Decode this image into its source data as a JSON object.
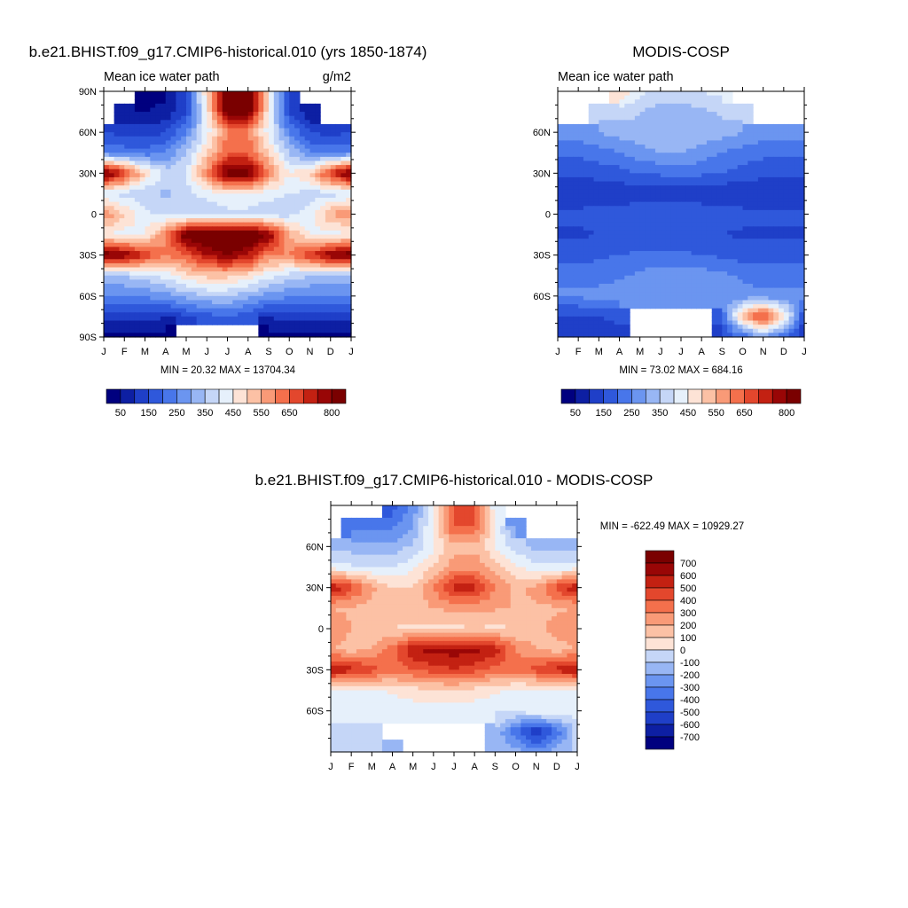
{
  "palette": [
    "#00007f",
    "#0d1fa3",
    "#1f3fc8",
    "#2f58db",
    "#4876ea",
    "#6b95f0",
    "#98b6f4",
    "#c5d6f7",
    "#e6f0fb",
    "#fde3d6",
    "#fcc1a5",
    "#f99a77",
    "#f4704c",
    "#e3472d",
    "#c32112",
    "#990606",
    "#7a0000"
  ],
  "missing_color": "#ffffff",
  "panels": [
    {
      "id": "model",
      "title": "b.e21.BHIST.f09_g17.CMIP6-historical.010 (yrs 1850-1874)",
      "subtitle_left": "Mean ice water path",
      "subtitle_right": "g/m2",
      "stats": "MIN =  20.32 MAX = 13704.34",
      "x_ticks": [
        "J",
        "F",
        "M",
        "A",
        "M",
        "J",
        "J",
        "A",
        "S",
        "O",
        "N",
        "D",
        "J"
      ],
      "y_ticks": [
        "90N",
        "60N",
        "30N",
        "0",
        "30S",
        "60S",
        "90S"
      ]
    },
    {
      "id": "obs",
      "title": "MODIS-COSP",
      "subtitle_left": "Mean ice water path",
      "subtitle_right": "",
      "stats": "MIN =  73.02 MAX = 684.16",
      "x_ticks": [
        "J",
        "F",
        "M",
        "A",
        "M",
        "J",
        "J",
        "A",
        "S",
        "O",
        "N",
        "D",
        "J"
      ],
      "y_ticks": [
        "60N",
        "30N",
        "0",
        "30S",
        "60S"
      ]
    },
    {
      "id": "diff",
      "title": "b.e21.BHIST.f09_g17.CMIP6-historical.010 - MODIS-COSP",
      "subtitle_left": "",
      "subtitle_right": "",
      "stats": "MIN = -622.49 MAX = 10929.27",
      "x_ticks": [
        "J",
        "F",
        "M",
        "A",
        "M",
        "J",
        "J",
        "A",
        "S",
        "O",
        "N",
        "D",
        "J"
      ],
      "y_ticks": [
        "60N",
        "30N",
        "0",
        "30S",
        "60S"
      ]
    }
  ],
  "colorbar_abs": {
    "labels": [
      "50",
      "150",
      "250",
      "350",
      "450",
      "550",
      "650",
      "800"
    ]
  },
  "colorbar_diff": {
    "labels": [
      "700",
      "600",
      "500",
      "400",
      "300",
      "200",
      "100",
      "0",
      "-100",
      "-200",
      "-300",
      "-400",
      "-500",
      "-600",
      "-700"
    ]
  },
  "chart_data": [
    {
      "type": "heatmap",
      "title": "b.e21.BHIST.f09_g17.CMIP6-historical.010 (yrs 1850-1874)",
      "subtitle": "Mean ice water path",
      "units": "g/m2",
      "x": [
        "J",
        "F",
        "M",
        "A",
        "M",
        "J",
        "J",
        "A",
        "S",
        "O",
        "N",
        "D",
        "J"
      ],
      "y": [
        "90S",
        "75S",
        "60S",
        "45S",
        "30S",
        "15S",
        "0",
        "15N",
        "30N",
        "45N",
        "60N",
        "75N",
        "90N"
      ],
      "xlim": [
        "J",
        "J"
      ],
      "ylim": [
        "90S",
        "90N"
      ],
      "z": [
        [
          40,
          40,
          40,
          30,
          null,
          null,
          null,
          null,
          30,
          40,
          40,
          40,
          40
        ],
        [
          120,
          120,
          120,
          100,
          150,
          180,
          200,
          160,
          100,
          120,
          120,
          120,
          120
        ],
        [
          250,
          250,
          260,
          280,
          320,
          350,
          350,
          320,
          280,
          260,
          250,
          250,
          250
        ],
        [
          350,
          350,
          380,
          420,
          480,
          520,
          520,
          480,
          420,
          380,
          350,
          350,
          350
        ],
        [
          850,
          800,
          700,
          600,
          650,
          750,
          800,
          750,
          600,
          600,
          700,
          800,
          850
        ],
        [
          450,
          420,
          450,
          600,
          850,
          900,
          900,
          900,
          800,
          550,
          450,
          420,
          450
        ],
        [
          600,
          500,
          420,
          380,
          360,
          360,
          380,
          380,
          360,
          380,
          420,
          550,
          600
        ],
        [
          400,
          380,
          360,
          340,
          380,
          420,
          450,
          450,
          420,
          400,
          380,
          380,
          400
        ],
        [
          850,
          700,
          500,
          380,
          400,
          600,
          850,
          850,
          600,
          450,
          500,
          700,
          850
        ],
        [
          250,
          230,
          220,
          250,
          350,
          500,
          650,
          650,
          500,
          350,
          250,
          230,
          250
        ],
        [
          150,
          130,
          120,
          150,
          250,
          420,
          600,
          600,
          420,
          250,
          150,
          130,
          150
        ],
        [
          null,
          60,
          50,
          60,
          150,
          450,
          850,
          850,
          450,
          150,
          60,
          null,
          null
        ],
        [
          null,
          null,
          30,
          40,
          150,
          500,
          900,
          900,
          450,
          150,
          null,
          null,
          null
        ]
      ],
      "min": 20.32,
      "max": 13704.34,
      "colorbar_levels": [
        "50",
        "150",
        "250",
        "350",
        "450",
        "550",
        "650",
        "800"
      ]
    },
    {
      "type": "heatmap",
      "title": "MODIS-COSP",
      "subtitle": "Mean ice water path",
      "x": [
        "J",
        "F",
        "M",
        "A",
        "M",
        "J",
        "J",
        "A",
        "S",
        "O",
        "N",
        "D",
        "J"
      ],
      "y": [
        "90S",
        "75S",
        "60S",
        "45S",
        "30S",
        "15S",
        "0",
        "15N",
        "30N",
        "45N",
        "60N",
        "75N",
        "90N"
      ],
      "xlim": [
        "J",
        "J"
      ],
      "ylim": [
        "90S",
        "90N"
      ],
      "z": [
        [
          100,
          100,
          120,
          140,
          null,
          null,
          null,
          null,
          150,
          200,
          300,
          200,
          100
        ],
        [
          140,
          140,
          150,
          160,
          null,
          null,
          null,
          null,
          200,
          550,
          700,
          500,
          140
        ],
        [
          260,
          260,
          270,
          280,
          290,
          290,
          290,
          290,
          280,
          270,
          260,
          260,
          260
        ],
        [
          230,
          230,
          230,
          240,
          260,
          280,
          290,
          280,
          260,
          240,
          230,
          230,
          230
        ],
        [
          180,
          180,
          190,
          200,
          210,
          210,
          210,
          200,
          190,
          180,
          180,
          180,
          180
        ],
        [
          140,
          140,
          150,
          150,
          160,
          160,
          160,
          150,
          150,
          140,
          140,
          140,
          140
        ],
        [
          170,
          170,
          170,
          180,
          190,
          200,
          200,
          190,
          180,
          170,
          170,
          170,
          170
        ],
        [
          100,
          100,
          110,
          110,
          120,
          120,
          120,
          110,
          110,
          100,
          100,
          100,
          100
        ],
        [
          160,
          160,
          170,
          180,
          200,
          210,
          220,
          210,
          200,
          180,
          170,
          160,
          160
        ],
        [
          210,
          210,
          230,
          250,
          280,
          300,
          300,
          280,
          250,
          230,
          210,
          210,
          210
        ],
        [
          280,
          280,
          300,
          320,
          330,
          340,
          340,
          330,
          320,
          300,
          280,
          280,
          280
        ],
        [
          null,
          null,
          400,
          380,
          350,
          330,
          330,
          340,
          360,
          400,
          null,
          null,
          null
        ],
        [
          null,
          null,
          null,
          500,
          420,
          380,
          380,
          400,
          420,
          null,
          null,
          null,
          null
        ]
      ],
      "min": 73.02,
      "max": 684.16,
      "colorbar_levels": [
        "50",
        "150",
        "250",
        "350",
        "450",
        "550",
        "650",
        "800"
      ]
    },
    {
      "type": "heatmap",
      "title": "b.e21.BHIST.f09_g17.CMIP6-historical.010 - MODIS-COSP",
      "x": [
        "J",
        "F",
        "M",
        "A",
        "M",
        "J",
        "J",
        "A",
        "S",
        "O",
        "N",
        "D",
        "J"
      ],
      "y": [
        "90S",
        "75S",
        "60S",
        "45S",
        "30S",
        "15S",
        "0",
        "15N",
        "30N",
        "45N",
        "60N",
        "75N",
        "90N"
      ],
      "xlim": [
        "J",
        "J"
      ],
      "ylim": [
        "90S",
        "90N"
      ],
      "z": [
        [
          -60,
          -60,
          -80,
          -100,
          null,
          null,
          null,
          null,
          -100,
          -150,
          -250,
          -150,
          -60
        ],
        [
          -50,
          -50,
          -40,
          null,
          null,
          null,
          null,
          null,
          -100,
          -400,
          -600,
          -380,
          -50
        ],
        [
          60,
          60,
          40,
          20,
          40,
          60,
          60,
          40,
          10,
          20,
          100,
          60,
          60
        ],
        [
          60,
          60,
          80,
          120,
          160,
          180,
          180,
          160,
          120,
          80,
          60,
          60,
          60
        ],
        [
          700,
          650,
          550,
          450,
          500,
          550,
          600,
          550,
          450,
          450,
          550,
          650,
          700
        ],
        [
          300,
          250,
          300,
          450,
          700,
          750,
          750,
          750,
          650,
          400,
          300,
          250,
          300
        ],
        [
          400,
          300,
          250,
          200,
          180,
          160,
          180,
          190,
          180,
          200,
          250,
          350,
          400
        ],
        [
          300,
          280,
          250,
          230,
          260,
          300,
          330,
          340,
          310,
          300,
          280,
          280,
          300
        ],
        [
          700,
          550,
          330,
          200,
          200,
          400,
          650,
          650,
          400,
          270,
          330,
          550,
          700
        ],
        [
          40,
          20,
          -10,
          0,
          70,
          200,
          350,
          370,
          250,
          120,
          40,
          20,
          40
        ],
        [
          -130,
          -150,
          -180,
          -170,
          -80,
          80,
          260,
          270,
          100,
          -50,
          -130,
          -150,
          -130
        ],
        [
          null,
          -340,
          -350,
          -320,
          -200,
          120,
          520,
          510,
          90,
          -250,
          null,
          null,
          null
        ],
        [
          null,
          null,
          null,
          -460,
          -270,
          120,
          520,
          500,
          30,
          null,
          null,
          null,
          null
        ]
      ],
      "min": -622.49,
      "max": 10929.27,
      "colorbar_levels": [
        "700",
        "600",
        "500",
        "400",
        "300",
        "200",
        "100",
        "0",
        "-100",
        "-200",
        "-300",
        "-400",
        "-500",
        "-600",
        "-700"
      ]
    }
  ]
}
